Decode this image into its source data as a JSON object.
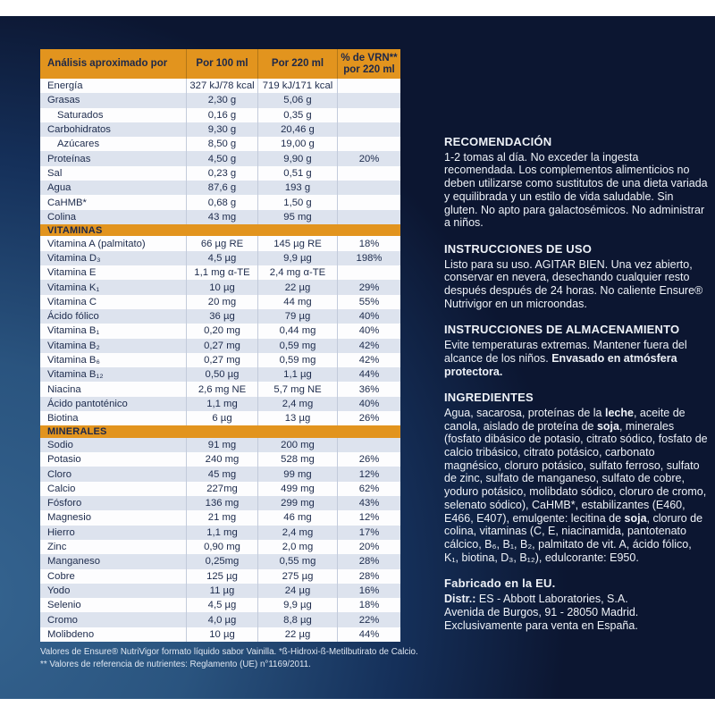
{
  "colors": {
    "accent_orange": "#e2941e",
    "table_text_navy": "#1d2b4c",
    "alt_row": "#dde3ee",
    "background_navy_dark": "#0c1631",
    "background_glow_blue": "#356490",
    "body_text": "#eef2f8"
  },
  "table": {
    "columns": [
      "Análisis aproximado por",
      "Por 100 ml",
      "Por 220 ml",
      "% de VRN**\npor 220 ml"
    ],
    "sections": [
      {
        "title": "",
        "rows": [
          {
            "name": "Energía",
            "indent": false,
            "per_100ml": "327 kJ/78 kcal",
            "per_220ml": "719 kJ/171 kcal",
            "vrn_220ml": ""
          },
          {
            "name": "Grasas",
            "indent": false,
            "per_100ml": "2,30 g",
            "per_220ml": "5,06 g",
            "vrn_220ml": ""
          },
          {
            "name": "Saturados",
            "indent": true,
            "per_100ml": "0,16 g",
            "per_220ml": "0,35 g",
            "vrn_220ml": ""
          },
          {
            "name": "Carbohidratos",
            "indent": false,
            "per_100ml": "9,30 g",
            "per_220ml": "20,46 g",
            "vrn_220ml": ""
          },
          {
            "name": "Azúcares",
            "indent": true,
            "per_100ml": "8,50 g",
            "per_220ml": "19,00 g",
            "vrn_220ml": ""
          },
          {
            "name": "Proteínas",
            "indent": false,
            "per_100ml": "4,50 g",
            "per_220ml": "9,90 g",
            "vrn_220ml": "20%"
          },
          {
            "name": "Sal",
            "indent": false,
            "per_100ml": "0,23 g",
            "per_220ml": "0,51 g",
            "vrn_220ml": ""
          },
          {
            "name": "Agua",
            "indent": false,
            "per_100ml": "87,6 g",
            "per_220ml": "193 g",
            "vrn_220ml": ""
          },
          {
            "name": "CaHMB*",
            "indent": false,
            "per_100ml": "0,68 g",
            "per_220ml": "1,50 g",
            "vrn_220ml": ""
          },
          {
            "name": "Colina",
            "indent": false,
            "per_100ml": "43 mg",
            "per_220ml": "95 mg",
            "vrn_220ml": ""
          }
        ]
      },
      {
        "title": "VITAMINAS",
        "rows": [
          {
            "name": "Vitamina A (palmitato)",
            "indent": false,
            "per_100ml": "66 µg RE",
            "per_220ml": "145 µg RE",
            "vrn_220ml": "18%"
          },
          {
            "name": "Vitamina D₃",
            "indent": false,
            "per_100ml": "4,5 µg",
            "per_220ml": "9,9 µg",
            "vrn_220ml": "198%"
          },
          {
            "name": "Vitamina E",
            "indent": false,
            "per_100ml": "1,1 mg α-TE",
            "per_220ml": "2,4 mg α-TE",
            "vrn_220ml": ""
          },
          {
            "name": "Vitamina K₁",
            "indent": false,
            "per_100ml": "10 µg",
            "per_220ml": "22 µg",
            "vrn_220ml": "29%"
          },
          {
            "name": "Vitamina C",
            "indent": false,
            "per_100ml": "20 mg",
            "per_220ml": "44 mg",
            "vrn_220ml": "55%"
          },
          {
            "name": "Ácido fólico",
            "indent": false,
            "per_100ml": "36 µg",
            "per_220ml": "79 µg",
            "vrn_220ml": "40%"
          },
          {
            "name": "Vitamina B₁",
            "indent": false,
            "per_100ml": "0,20 mg",
            "per_220ml": "0,44 mg",
            "vrn_220ml": "40%"
          },
          {
            "name": "Vitamina B₂",
            "indent": false,
            "per_100ml": "0,27 mg",
            "per_220ml": "0,59 mg",
            "vrn_220ml": "42%"
          },
          {
            "name": "Vitamina B₆",
            "indent": false,
            "per_100ml": "0,27 mg",
            "per_220ml": "0,59 mg",
            "vrn_220ml": "42%"
          },
          {
            "name": "Vitamina B₁₂",
            "indent": false,
            "per_100ml": "0,50 µg",
            "per_220ml": "1,1 µg",
            "vrn_220ml": "44%"
          },
          {
            "name": "Niacina",
            "indent": false,
            "per_100ml": "2,6 mg NE",
            "per_220ml": "5,7 mg NE",
            "vrn_220ml": "36%"
          },
          {
            "name": "Ácido pantoténico",
            "indent": false,
            "per_100ml": "1,1 mg",
            "per_220ml": "2,4 mg",
            "vrn_220ml": "40%"
          },
          {
            "name": "Biotina",
            "indent": false,
            "per_100ml": "6 µg",
            "per_220ml": "13 µg",
            "vrn_220ml": "26%"
          }
        ]
      },
      {
        "title": "MINERALES",
        "rows": [
          {
            "name": "Sodio",
            "indent": false,
            "per_100ml": "91 mg",
            "per_220ml": "200 mg",
            "vrn_220ml": ""
          },
          {
            "name": "Potasio",
            "indent": false,
            "per_100ml": "240 mg",
            "per_220ml": "528 mg",
            "vrn_220ml": "26%"
          },
          {
            "name": "Cloro",
            "indent": false,
            "per_100ml": "45 mg",
            "per_220ml": "99 mg",
            "vrn_220ml": "12%"
          },
          {
            "name": "Calcio",
            "indent": false,
            "per_100ml": "227mg",
            "per_220ml": "499 mg",
            "vrn_220ml": "62%"
          },
          {
            "name": "Fósforo",
            "indent": false,
            "per_100ml": "136 mg",
            "per_220ml": "299 mg",
            "vrn_220ml": "43%"
          },
          {
            "name": "Magnesio",
            "indent": false,
            "per_100ml": "21 mg",
            "per_220ml": "46 mg",
            "vrn_220ml": "12%"
          },
          {
            "name": "Hierro",
            "indent": false,
            "per_100ml": "1,1 mg",
            "per_220ml": "2,4 mg",
            "vrn_220ml": "17%"
          },
          {
            "name": "Zinc",
            "indent": false,
            "per_100ml": "0,90 mg",
            "per_220ml": "2,0 mg",
            "vrn_220ml": "20%"
          },
          {
            "name": "Manganeso",
            "indent": false,
            "per_100ml": "0,25mg",
            "per_220ml": "0,55 mg",
            "vrn_220ml": "28%"
          },
          {
            "name": "Cobre",
            "indent": false,
            "per_100ml": "125 µg",
            "per_220ml": "275 µg",
            "vrn_220ml": "28%"
          },
          {
            "name": "Yodo",
            "indent": false,
            "per_100ml": "11 µg",
            "per_220ml": "24 µg",
            "vrn_220ml": "16%"
          },
          {
            "name": "Selenio",
            "indent": false,
            "per_100ml": "4,5 µg",
            "per_220ml": "9,9 µg",
            "vrn_220ml": "18%"
          },
          {
            "name": "Cromo",
            "indent": false,
            "per_100ml": "4,0 µg",
            "per_220ml": "8,8 µg",
            "vrn_220ml": "22%"
          },
          {
            "name": "Molibdeno",
            "indent": false,
            "per_100ml": "10 µg",
            "per_220ml": "22 µg",
            "vrn_220ml": "44%"
          }
        ]
      }
    ],
    "footnotes": [
      "Valores de Ensure® NutriVigor formato líquido sabor Vainilla. *ß-Hidroxi-ß-Metilbutirato de Calcio.",
      "** Valores de referencia de nutrientes: Reglamento (UE) n°1169/2011."
    ]
  },
  "info_sections": [
    {
      "title": "RECOMENDACIÓN",
      "body": "1-2 tomas al día. No exceder la ingesta recomendada. Los complementos alimenticios no deben utilizarse como sustitutos de una dieta variada y equilibrada y un estilo de vida saludable. Sin gluten. No apto para galactosémicos. No administrar a niños."
    },
    {
      "title": "INSTRUCCIONES DE USO",
      "body": "Listo para su uso. AGITAR BIEN. Una vez abierto, conservar en nevera, desechando cualquier resto después después de 24 horas. No caliente Ensure® Nutrivigor en un microondas."
    },
    {
      "title": "INSTRUCCIONES DE ALMACENAMIENTO",
      "body": "Evite temperaturas extremas. Mantener fuera del alcance de los niños. **Envasado en atmósfera protectora.**"
    },
    {
      "title": "INGREDIENTES",
      "body": "Agua, sacarosa, proteínas de la **leche**, aceite de canola, aislado de proteína de **soja**, minerales (fosfato dibásico de potasio, citrato sódico, fosfato de calcio tribásico, citrato potásico, carbonato magnésico, cloruro potásico, sulfato ferroso, sulfato de zinc, sulfato de manganeso, sulfato de cobre, yoduro potásico, molibdato sódico, cloruro de cromo, selenato sódico), CaHMB*, estabilizantes (E460, E466, E407), emulgente: lecitina de **soja**, cloruro de colina, vitaminas (C, E, niacinamida, pantotenato cálcico, B₆, B₁, B₂, palmitato de vit. A, ácido fólico, K₁, biotina, D₃, B₁₂), edulcorante: E950."
    },
    {
      "title": "Fabricado en la EU.",
      "body": "**Distr.:** ES - Abbott Laboratories, S.A.\nAvenida de Burgos, 91 - 28050 Madrid.\nExclusivamente para venta en España."
    }
  ]
}
